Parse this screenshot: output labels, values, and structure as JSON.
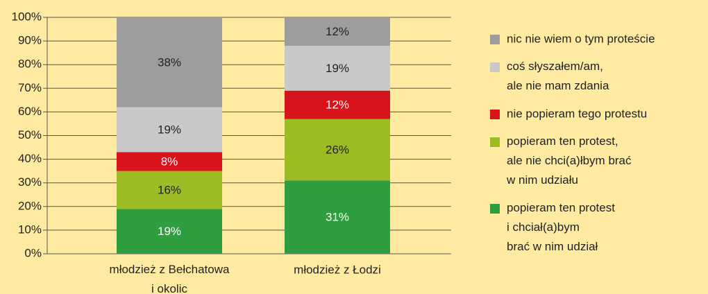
{
  "chart_data": {
    "type": "stacked_bar",
    "categories": [
      "młodzież z Bełchatowa\ni okolic",
      "młodzież z Łodzi"
    ],
    "series": [
      {
        "name": "popieram ten protest\ni chciał(a)bym\nbrać w nim udział",
        "color": "#2e9e3e",
        "label_color": "#ffffff",
        "values": [
          19,
          31
        ],
        "value_labels": [
          "19%",
          "31%"
        ]
      },
      {
        "name": "popieram ten protest,\nale nie chci(a)łbym brać\nw nim udziału",
        "color": "#9cbc24",
        "label_color": "#222222",
        "values": [
          16,
          26
        ],
        "value_labels": [
          "16%",
          "26%"
        ]
      },
      {
        "name": "nie popieram tego protestu",
        "color": "#d7141b",
        "label_color": "#ffffff",
        "values": [
          8,
          12
        ],
        "value_labels": [
          "8%",
          "12%"
        ]
      },
      {
        "name": "coś słyszałem/am,\nale nie mam zdania",
        "color": "#c9c9c9",
        "label_color": "#222222",
        "values": [
          19,
          19
        ],
        "value_labels": [
          "19%",
          "19%"
        ]
      },
      {
        "name": "nic nie wiem o tym proteście",
        "color": "#9d9d9d",
        "label_color": "#222222",
        "values": [
          38,
          12
        ],
        "value_labels": [
          "38%",
          "12%"
        ]
      }
    ],
    "ylim": [
      0,
      100
    ],
    "yticks": [
      {
        "value": 0,
        "label": "0%"
      },
      {
        "value": 10,
        "label": "10%"
      },
      {
        "value": 20,
        "label": "20%"
      },
      {
        "value": 30,
        "label": "30%"
      },
      {
        "value": 40,
        "label": "40%"
      },
      {
        "value": 50,
        "label": "50%"
      },
      {
        "value": 60,
        "label": "60%"
      },
      {
        "value": 70,
        "label": "70%"
      },
      {
        "value": 80,
        "label": "80%"
      },
      {
        "value": 90,
        "label": "90%"
      },
      {
        "value": 100,
        "label": "100%"
      }
    ],
    "grid": true,
    "legend": "right"
  }
}
